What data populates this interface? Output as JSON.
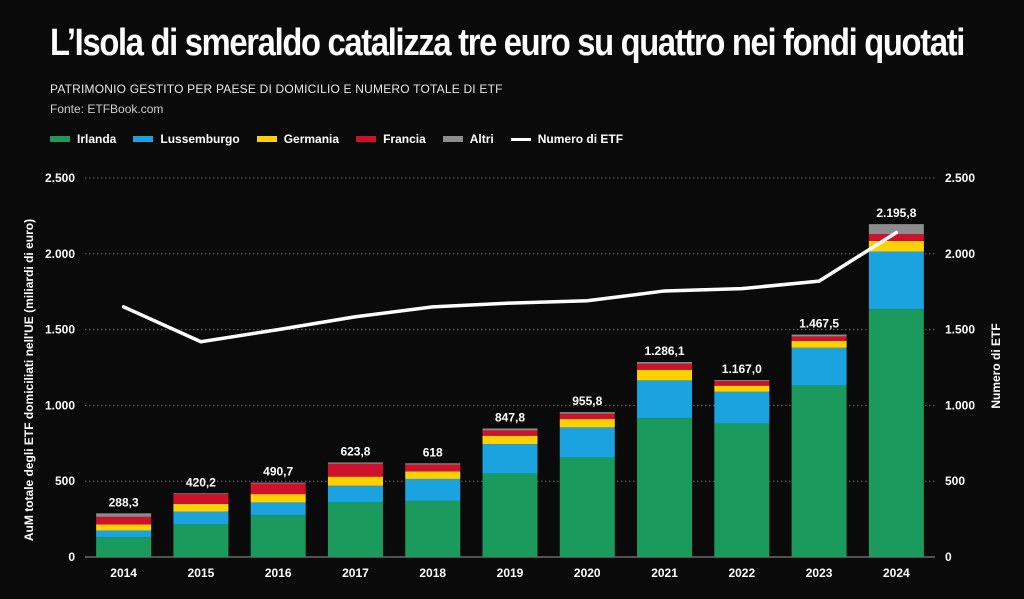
{
  "header": {
    "title": "L’Isola di smeraldo catalizza tre euro su quattro nei fondi quotati",
    "subtitle": "PATRIMONIO GESTITO PER PAESE DI DOMICILIO E NUMERO TOTALE DI ETF",
    "source": "Fonte: ETFBook.com"
  },
  "legend": [
    {
      "label": "Irlanda",
      "color": "#1a9a5c",
      "kind": "bar"
    },
    {
      "label": "Lussemburgo",
      "color": "#1ba3df",
      "kind": "bar"
    },
    {
      "label": "Germania",
      "color": "#ffd100",
      "kind": "bar"
    },
    {
      "label": "Francia",
      "color": "#d0112b",
      "kind": "bar"
    },
    {
      "label": "Altri",
      "color": "#8c8c8c",
      "kind": "bar"
    },
    {
      "label": "Numero di ETF",
      "color": "#ffffff",
      "kind": "line"
    }
  ],
  "chart_data": {
    "type": "bar",
    "stacked": true,
    "categories": [
      "2014",
      "2015",
      "2016",
      "2017",
      "2018",
      "2019",
      "2020",
      "2021",
      "2022",
      "2023",
      "2024"
    ],
    "series": [
      {
        "name": "Irlanda",
        "color": "#1a9a5c",
        "values": [
          130,
          215,
          275,
          360,
          370,
          550,
          655,
          915,
          880,
          1130,
          1635
        ]
      },
      {
        "name": "Lussemburgo",
        "color": "#1ba3df",
        "values": [
          45,
          85,
          85,
          110,
          145,
          195,
          200,
          250,
          210,
          250,
          380
        ]
      },
      {
        "name": "Germania",
        "color": "#ffd100",
        "values": [
          40,
          50,
          55,
          60,
          50,
          55,
          55,
          70,
          40,
          45,
          70
        ]
      },
      {
        "name": "Francia",
        "color": "#d0112b",
        "values": [
          50,
          65,
          70,
          85,
          45,
          35,
          35,
          40,
          30,
          30,
          45
        ]
      },
      {
        "name": "Altri",
        "color": "#8c8c8c",
        "values": [
          23.3,
          5.2,
          5.7,
          8.8,
          8,
          12.8,
          10.8,
          11.1,
          7,
          12.5,
          65.8
        ]
      }
    ],
    "totals": [
      "288,3",
      "420,2",
      "490,7",
      "623,8",
      "618",
      "847,8",
      "955,8",
      "1.286,1",
      "1.167,0",
      "1.467,5",
      "2.195,8"
    ],
    "line": {
      "name": "Numero di ETF",
      "color": "#ffffff",
      "values": [
        1650,
        1420,
        1500,
        1585,
        1650,
        1675,
        1690,
        1755,
        1770,
        1820,
        2140
      ]
    },
    "ylabel": "AuM totale degli ETF domiciliati nell'UE (miliardi di euro)",
    "y2label": "Numero di ETF",
    "ylim": [
      0,
      2500
    ],
    "y2lim": [
      0,
      2500
    ],
    "yticks": [
      0,
      500,
      1000,
      1500,
      2000,
      2500
    ],
    "ytick_labels": [
      "0",
      "500",
      "1.000",
      "1.500",
      "2.000",
      "2.500"
    ],
    "grid": true,
    "legend_position": "top-left"
  }
}
